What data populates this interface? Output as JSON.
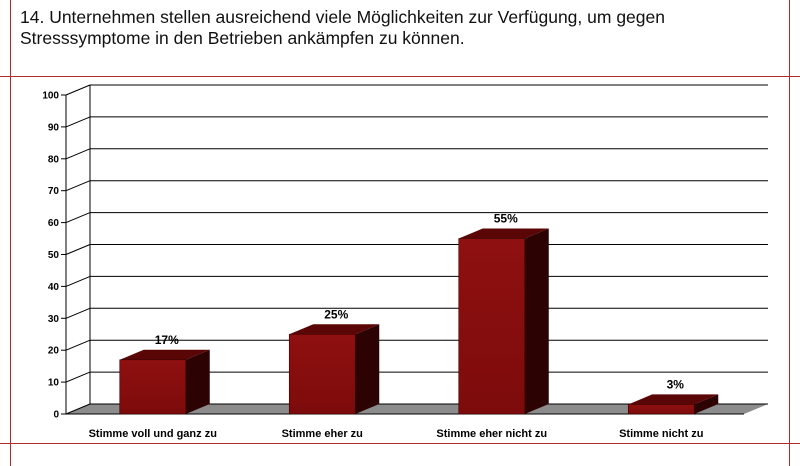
{
  "title": {
    "line1": "14. Unternehmen stellen ausreichend viele Möglichkeiten zur Verfügung, um gegen",
    "line2": "Stresssymptome in den Betrieben ankämpfen zu können."
  },
  "colors": {
    "bar_front": "#7d0b0b",
    "bar_top": "#5a0606",
    "bar_side": "#2c0202",
    "floor": "#8c8c8c",
    "gridline": "#000000",
    "rule": "#b22a2a"
  },
  "chart_data": {
    "type": "bar",
    "categories": [
      "Stimme voll und ganz zu",
      "Stimme eher zu",
      "Stimme eher nicht zu",
      "Stimme nicht zu"
    ],
    "values": [
      17,
      25,
      55,
      3
    ],
    "data_labels": [
      "17%",
      "25%",
      "55%",
      "3%"
    ],
    "yticks": [
      "0",
      "10",
      "20",
      "30",
      "40",
      "50",
      "60",
      "70",
      "80",
      "90",
      "100"
    ],
    "ylim": [
      0,
      100
    ],
    "grid": true,
    "legend": "none",
    "style": "3d"
  }
}
